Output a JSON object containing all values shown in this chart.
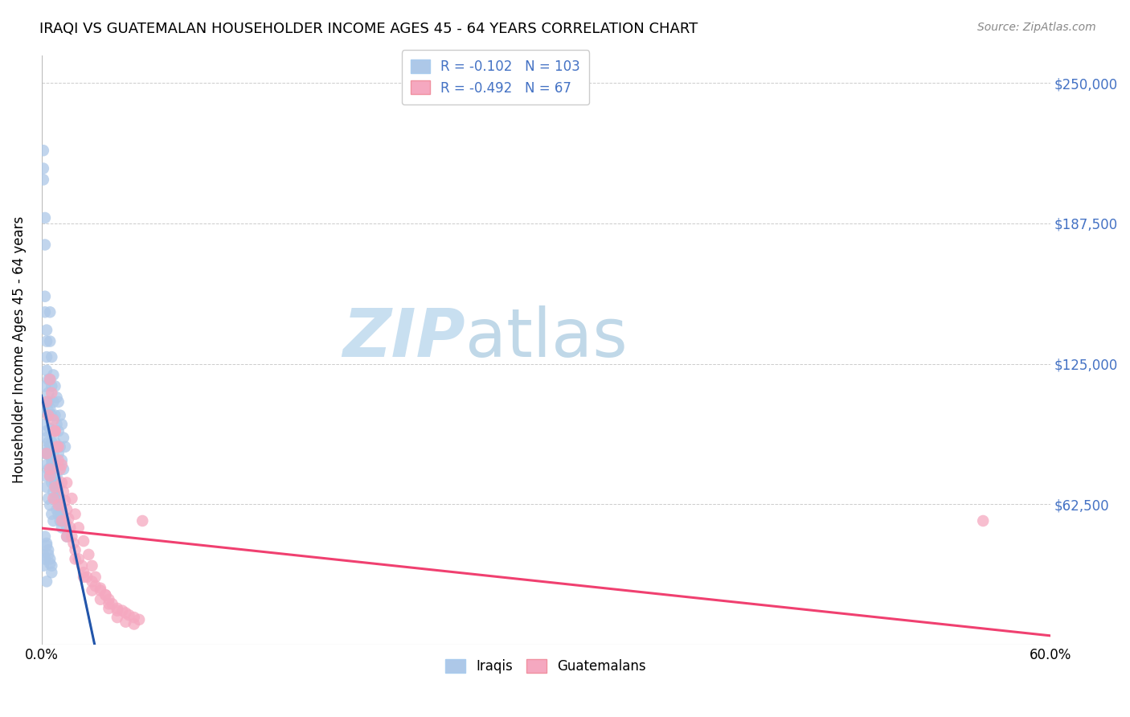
{
  "title": "IRAQI VS GUATEMALAN HOUSEHOLDER INCOME AGES 45 - 64 YEARS CORRELATION CHART",
  "source": "Source: ZipAtlas.com",
  "ylabel": "Householder Income Ages 45 - 64 years",
  "xlim": [
    0.0,
    0.6
  ],
  "ylim": [
    0,
    262500
  ],
  "yticks": [
    0,
    62500,
    125000,
    187500,
    250000
  ],
  "ytick_labels": [
    "",
    "$62,500",
    "$125,000",
    "$187,500",
    "$250,000"
  ],
  "xtick_labels": [
    "0.0%",
    "60.0%"
  ],
  "legend_r_iraqi": "-0.102",
  "legend_n_iraqi": "103",
  "legend_r_guatemalan": "-0.492",
  "legend_n_guatemalan": "67",
  "iraqi_color": "#adc8e8",
  "guatemalan_color": "#f5a8c0",
  "iraqi_line_color": "#2255aa",
  "guatemalan_line_color": "#f04070",
  "dashed_line_color": "#88aad0",
  "watermark_zip": "ZIP",
  "watermark_atlas": "atlas",
  "watermark_color_zip": "#c8dff0",
  "watermark_color_atlas": "#c0d8e8",
  "background_color": "#ffffff",
  "title_fontsize": 13,
  "iraqi_x": [
    0.001,
    0.001,
    0.001,
    0.002,
    0.002,
    0.002,
    0.002,
    0.003,
    0.003,
    0.003,
    0.003,
    0.004,
    0.004,
    0.004,
    0.004,
    0.005,
    0.005,
    0.005,
    0.005,
    0.006,
    0.006,
    0.006,
    0.007,
    0.007,
    0.007,
    0.008,
    0.008,
    0.008,
    0.009,
    0.009,
    0.01,
    0.01,
    0.01,
    0.011,
    0.011,
    0.012,
    0.012,
    0.013,
    0.013,
    0.014,
    0.002,
    0.002,
    0.003,
    0.003,
    0.004,
    0.004,
    0.005,
    0.005,
    0.006,
    0.006,
    0.007,
    0.007,
    0.008,
    0.009,
    0.01,
    0.011,
    0.012,
    0.003,
    0.003,
    0.004,
    0.005,
    0.006,
    0.007,
    0.008,
    0.009,
    0.01,
    0.011,
    0.012,
    0.014,
    0.015,
    0.001,
    0.002,
    0.003,
    0.004,
    0.005,
    0.006,
    0.007,
    0.008,
    0.015,
    0.002,
    0.003,
    0.004,
    0.005,
    0.006,
    0.007,
    0.008,
    0.009,
    0.01,
    0.011,
    0.012,
    0.003,
    0.001,
    0.001,
    0.002,
    0.004,
    0.005,
    0.006,
    0.002,
    0.003,
    0.004,
    0.005,
    0.006,
    0.003
  ],
  "iraqi_y": [
    220000,
    212000,
    207000,
    190000,
    178000,
    155000,
    148000,
    140000,
    135000,
    128000,
    122000,
    118000,
    112000,
    108000,
    104000,
    148000,
    135000,
    118000,
    105000,
    128000,
    115000,
    102000,
    120000,
    108000,
    95000,
    115000,
    102000,
    90000,
    110000,
    98000,
    108000,
    95000,
    85000,
    102000,
    88000,
    98000,
    82000,
    92000,
    78000,
    88000,
    85000,
    75000,
    80000,
    70000,
    78000,
    65000,
    75000,
    62000,
    72000,
    58000,
    68000,
    55000,
    65000,
    60000,
    58000,
    55000,
    52000,
    95000,
    85000,
    90000,
    88000,
    82000,
    78000,
    72000,
    68000,
    65000,
    62000,
    58000,
    55000,
    52000,
    105000,
    98000,
    92000,
    88000,
    84000,
    80000,
    76000,
    72000,
    48000,
    115000,
    108000,
    102000,
    96000,
    90000,
    85000,
    80000,
    75000,
    70000,
    65000,
    60000,
    45000,
    40000,
    35000,
    38000,
    42000,
    38000,
    35000,
    48000,
    44000,
    40000,
    36000,
    32000,
    28000
  ],
  "guatemalan_x": [
    0.003,
    0.004,
    0.005,
    0.006,
    0.007,
    0.008,
    0.009,
    0.01,
    0.011,
    0.012,
    0.013,
    0.014,
    0.015,
    0.016,
    0.017,
    0.018,
    0.019,
    0.02,
    0.022,
    0.024,
    0.025,
    0.027,
    0.03,
    0.032,
    0.035,
    0.038,
    0.04,
    0.042,
    0.045,
    0.048,
    0.05,
    0.052,
    0.055,
    0.058,
    0.06,
    0.008,
    0.01,
    0.012,
    0.015,
    0.018,
    0.02,
    0.022,
    0.025,
    0.028,
    0.03,
    0.032,
    0.035,
    0.038,
    0.04,
    0.045,
    0.005,
    0.008,
    0.01,
    0.012,
    0.015,
    0.02,
    0.025,
    0.03,
    0.035,
    0.04,
    0.045,
    0.05,
    0.055,
    0.56,
    0.003,
    0.005,
    0.007
  ],
  "guatemalan_y": [
    108000,
    102000,
    118000,
    112000,
    100000,
    95000,
    88000,
    82000,
    78000,
    72000,
    68000,
    64000,
    60000,
    56000,
    52000,
    48000,
    45000,
    42000,
    38000,
    35000,
    32000,
    30000,
    28000,
    26000,
    24000,
    22000,
    20000,
    18000,
    16000,
    15000,
    14000,
    13000,
    12000,
    11000,
    55000,
    95000,
    88000,
    80000,
    72000,
    65000,
    58000,
    52000,
    46000,
    40000,
    35000,
    30000,
    25000,
    22000,
    18000,
    15000,
    78000,
    70000,
    62000,
    55000,
    48000,
    38000,
    30000,
    24000,
    20000,
    16000,
    12000,
    10000,
    9000,
    55000,
    85000,
    75000,
    65000
  ]
}
